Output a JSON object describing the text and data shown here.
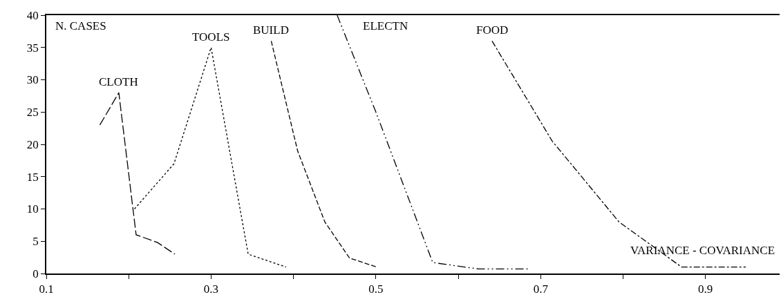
{
  "chart_data": {
    "type": "line",
    "xlabel": "VARIANCE - COVARIANCE",
    "ylabel": "N. CASES",
    "xlim": [
      0.1,
      0.99
    ],
    "xticks": [
      0.1,
      {
        "value": 0.2,
        "label": null
      },
      0.3,
      {
        "value": 0.4,
        "label": null
      },
      0.5,
      {
        "value": 0.6,
        "label": null
      },
      0.7,
      {
        "value": 0.8,
        "label": null
      },
      0.9
    ],
    "ylim": [
      0,
      40
    ],
    "yticks": [
      0,
      5,
      10,
      15,
      20,
      25,
      30,
      35,
      40
    ],
    "legend": false,
    "marker": "none",
    "series": [
      {
        "name": "CLOTH",
        "color": "#000000",
        "line_style": "longdash",
        "x": [
          0.165,
          0.188,
          0.209,
          0.235,
          0.256
        ],
        "values": [
          23,
          28,
          6,
          4.8,
          3
        ]
      },
      {
        "name": "TOOLS",
        "color": "#000000",
        "line_style": "dotted",
        "x": [
          0.207,
          0.255,
          0.3,
          0.345,
          0.391
        ],
        "values": [
          10,
          17,
          35,
          3,
          1
        ]
      },
      {
        "name": "BUILD",
        "color": "#000000",
        "line_style": "dashed",
        "x": [
          0.373,
          0.405,
          0.438,
          0.468,
          0.501
        ],
        "values": [
          36,
          19,
          8,
          2.4,
          1
        ]
      },
      {
        "name": "ELECTN",
        "color": "#000000",
        "line_style": "dashdotdot",
        "x": [
          0.453,
          0.5,
          0.569,
          0.625,
          0.686
        ],
        "values": [
          40,
          25,
          1.7,
          0.7,
          0.7
        ]
      },
      {
        "name": "FOOD",
        "color": "#000000",
        "line_style": "dashdot",
        "x": [
          0.641,
          0.714,
          0.795,
          0.871,
          0.949
        ],
        "values": [
          36,
          20.5,
          8,
          1,
          1
        ]
      }
    ]
  }
}
